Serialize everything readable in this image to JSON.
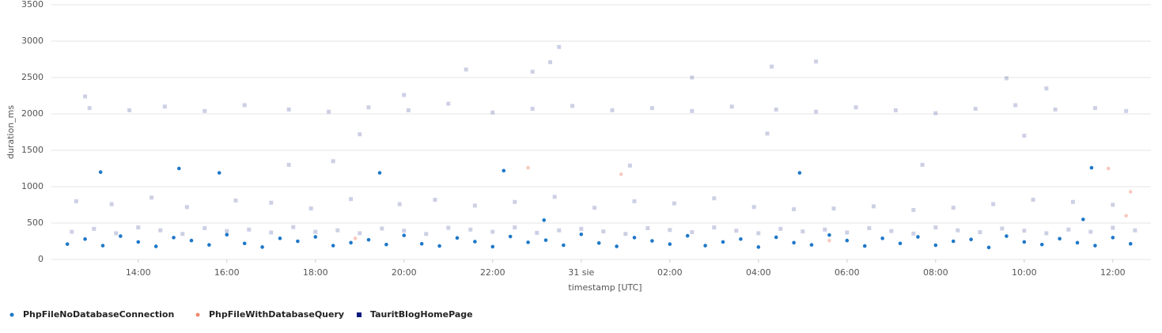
{
  "chart_data": {
    "type": "scatter",
    "x_label": "timestamp [UTC]",
    "y_label": "duration_ms",
    "xlim": [
      12.04,
      36.86
    ],
    "ylim": [
      0,
      3500
    ],
    "xticks": [
      {
        "value": 14,
        "label": "14:00"
      },
      {
        "value": 16,
        "label": "16:00"
      },
      {
        "value": 18,
        "label": "18:00"
      },
      {
        "value": 20,
        "label": "20:00"
      },
      {
        "value": 22,
        "label": "22:00"
      },
      {
        "value": 24,
        "label": "31 sie"
      },
      {
        "value": 26,
        "label": "02:00"
      },
      {
        "value": 28,
        "label": "04:00"
      },
      {
        "value": 30,
        "label": "06:00"
      },
      {
        "value": 32,
        "label": "08:00"
      },
      {
        "value": 34,
        "label": "10:00"
      },
      {
        "value": 36,
        "label": "12:00"
      }
    ],
    "yticks": [
      0,
      500,
      1000,
      1500,
      2000,
      2500,
      3000,
      3500
    ],
    "grid": true,
    "legend": "bottom",
    "series": [
      {
        "name": "PhpFileNoDatabaseConnection",
        "color": "#1e78c8",
        "x": [
          12.4,
          12.8,
          13.2,
          13.6,
          14,
          14.4,
          14.8,
          15.2,
          15.6,
          16,
          16.4,
          16.8,
          17.2,
          17.6,
          18,
          18.4,
          18.8,
          19.2,
          19.6,
          20,
          20.4,
          20.8,
          21.2,
          21.6,
          22,
          22.4,
          22.8,
          23.2,
          23.6,
          24,
          24.4,
          24.8,
          25.2,
          25.6,
          26,
          26.4,
          26.8,
          27.2,
          27.6,
          28,
          28.4,
          28.8,
          29.2,
          29.6,
          30,
          30.4,
          30.8,
          31.2,
          31.6,
          32,
          32.4,
          32.8,
          33.2,
          33.6,
          34,
          34.4,
          34.8,
          35.2,
          35.6,
          36,
          36.4,
          13.15,
          14.92,
          15.83,
          19.45,
          22.25,
          23.16,
          28.93,
          35.33,
          35.52
        ],
        "values": [
          210,
          280,
          190,
          320,
          240,
          180,
          300,
          260,
          200,
          340,
          220,
          170,
          290,
          250,
          310,
          190,
          230,
          270,
          205,
          330,
          215,
          185,
          295,
          245,
          175,
          315,
          235,
          265,
          195,
          345,
          225,
          180,
          300,
          255,
          210,
          325,
          190,
          240,
          280,
          170,
          305,
          230,
          200,
          335,
          260,
          185,
          290,
          220,
          310,
          195,
          250,
          275,
          165,
          320,
          240,
          205,
          285,
          230,
          190,
          300,
          215,
          1200,
          1250,
          1190,
          1190,
          1220,
          540,
          1190,
          550,
          1260
        ]
      },
      {
        "name": "PhpFileWithDatabaseQuery",
        "color": "#f08a70",
        "x": [
          24.9,
          36.4,
          36.3,
          35.9,
          22.8,
          18.9,
          29.6
        ],
        "values": [
          1170,
          930,
          600,
          1250,
          1260,
          290,
          260
        ]
      },
      {
        "name": "TauritBlogHomePage",
        "color": "#0a1a7c",
        "x": [
          12.5,
          13,
          13.5,
          14,
          14.5,
          15,
          15.5,
          16,
          16.5,
          17,
          17.5,
          18,
          18.5,
          19,
          19.5,
          20,
          20.5,
          21,
          21.5,
          22,
          22.5,
          23,
          23.5,
          24,
          24.5,
          25,
          25.5,
          26,
          26.5,
          27,
          27.5,
          28,
          28.5,
          29,
          29.5,
          30,
          30.5,
          31,
          31.5,
          32,
          32.5,
          33,
          33.5,
          34,
          34.5,
          35,
          35.5,
          36,
          36.5,
          12.6,
          13.4,
          14.3,
          15.1,
          16.2,
          17,
          17.9,
          18.8,
          19.9,
          20.7,
          21.6,
          22.5,
          23.4,
          24.3,
          25.2,
          26.1,
          27,
          27.9,
          28.8,
          29.7,
          30.6,
          31.5,
          32.4,
          33.3,
          34.2,
          35.1,
          36,
          12.9,
          13.8,
          14.6,
          15.5,
          16.4,
          17.4,
          18.3,
          19.2,
          20.1,
          21,
          22,
          22.9,
          23.8,
          24.7,
          25.6,
          26.5,
          27.4,
          28.4,
          29.3,
          30.2,
          31.1,
          32,
          32.9,
          33.8,
          34.7,
          35.6,
          36.3,
          23.5,
          23.3,
          22.9,
          21.4,
          28.3,
          29.3,
          33.6,
          34.5,
          26.5,
          12.8,
          20,
          17.4,
          18.4,
          25.1,
          31.7,
          34,
          19,
          28.2
        ],
        "values": [
          380,
          420,
          360,
          440,
          400,
          350,
          430,
          390,
          410,
          370,
          445,
          380,
          400,
          360,
          425,
          395,
          350,
          435,
          410,
          380,
          440,
          365,
          400,
          420,
          385,
          350,
          430,
          405,
          375,
          440,
          395,
          360,
          420,
          385,
          410,
          370,
          430,
          390,
          355,
          440,
          400,
          375,
          425,
          395,
          360,
          410,
          380,
          435,
          400,
          800,
          760,
          850,
          720,
          810,
          780,
          700,
          830,
          760,
          820,
          740,
          790,
          860,
          710,
          800,
          770,
          840,
          720,
          690,
          700,
          730,
          680,
          710,
          760,
          820,
          790,
          750,
          2080,
          2050,
          2100,
          2040,
          2120,
          2060,
          2030,
          2090,
          2050,
          2140,
          2020,
          2070,
          2110,
          2050,
          2080,
          2040,
          2100,
          2060,
          2030,
          2090,
          2050,
          2010,
          2070,
          2120,
          2060,
          2080,
          2040,
          2920,
          2710,
          2580,
          2610,
          2650,
          2720,
          2490,
          2350,
          2500,
          2240,
          2260,
          1300,
          1350,
          1290,
          1300,
          1700,
          1720,
          1730
        ]
      }
    ]
  }
}
